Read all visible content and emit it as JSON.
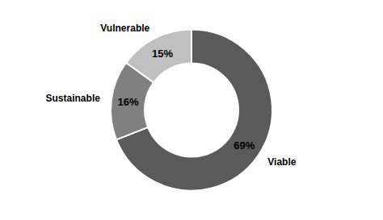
{
  "chart_data": {
    "type": "pie",
    "categories": [
      "Viable",
      "Sustainable",
      "Vulnerable"
    ],
    "values": [
      69,
      16,
      15
    ],
    "value_labels": [
      "69%",
      "16%",
      "15%"
    ],
    "colors": [
      "#5a5a5a",
      "#808080",
      "#c0c0c0"
    ],
    "data_labels": true
  }
}
